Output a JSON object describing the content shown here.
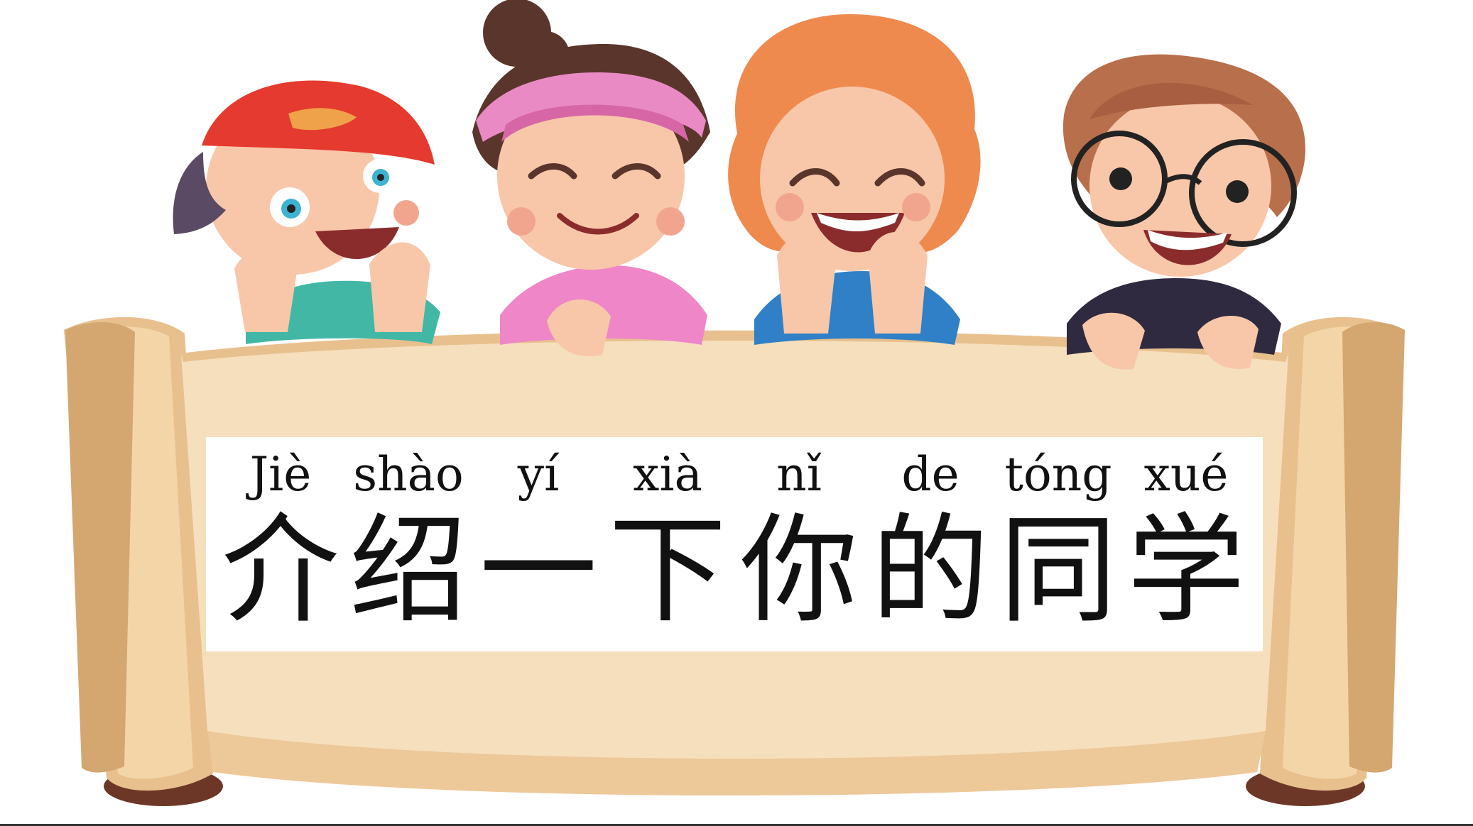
{
  "title": {
    "pinyin": [
      "Jiè",
      "shào",
      "yí",
      "xià",
      "nǐ",
      "de",
      "tóng",
      "xué"
    ],
    "hanzi": [
      "介",
      "绍",
      "一",
      "下",
      "你",
      "的",
      "同",
      "学"
    ]
  },
  "colors": {
    "scroll_light": "#f6dfbd",
    "scroll_mid": "#edc898",
    "scroll_dark": "#b98356",
    "scroll_shadow": "#6d3727",
    "title_box": "#ffffff",
    "text": "#111111"
  },
  "illustration": {
    "children": [
      {
        "name": "boy-red-cap",
        "cap": "#e53a2f",
        "shirt": "#42b7a6",
        "hair": "#f0a24a"
      },
      {
        "name": "girl-bun",
        "headband": "#e98ac5",
        "shirt": "#ef86c8",
        "hair": "#5a352b"
      },
      {
        "name": "curly-redhead",
        "shirt": "#2f80c6",
        "hair": "#ef8a4e"
      },
      {
        "name": "boy-glasses",
        "shirt": "#2f2a3f",
        "hair": "#b86f4c"
      }
    ]
  }
}
